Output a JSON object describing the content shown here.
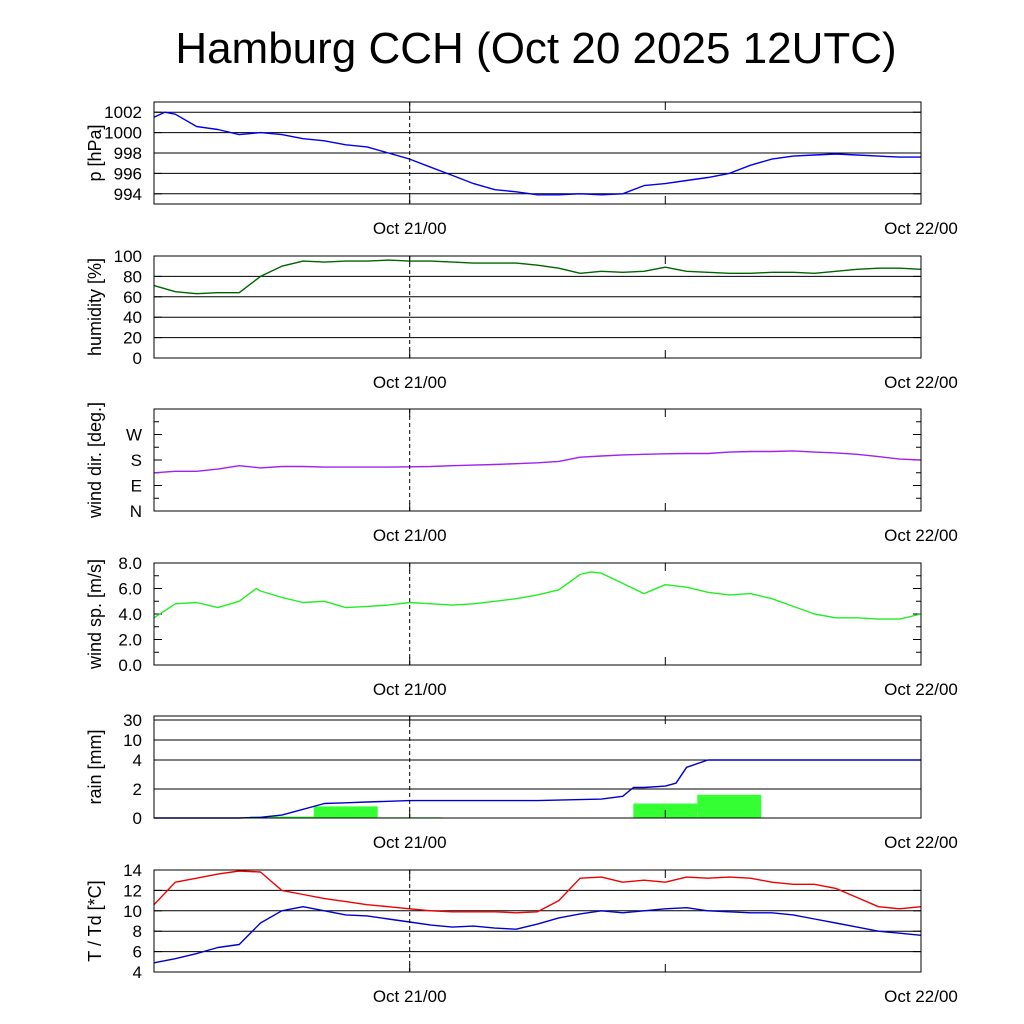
{
  "title": "Hamburg CCH (Oct 20 2025 12UTC)",
  "colors": {
    "pressure": "#0000ee",
    "humidity": "#006400",
    "wind_dir": "#a020f0",
    "wind_speed": "#22ee22",
    "rain_bars": "#33ff33",
    "rain_accum": "#0000cc",
    "temperature": "#ee0000",
    "dewpoint": "#0000cc"
  },
  "chart_data": [
    {
      "type": "line",
      "ylabel": "p [hPa]",
      "x_ticks": [
        "Oct 21/00",
        "Oct 22/00"
      ],
      "x_range_hours": [
        12,
        48
      ],
      "ylim": [
        993,
        1003
      ],
      "yticks": [
        "994",
        "996",
        "998",
        "1000",
        "1002"
      ],
      "ytick_values": [
        994,
        996,
        998,
        1000,
        1002
      ],
      "grid": true,
      "series": [
        {
          "key": "pressure",
          "x": [
            12,
            12.5,
            13,
            14,
            15,
            16,
            17,
            18,
            19,
            20,
            21,
            22,
            23,
            24,
            25,
            26,
            27,
            28,
            29,
            30,
            31,
            32,
            33,
            34,
            35,
            36,
            37,
            38,
            39,
            40,
            41,
            42,
            43,
            44,
            45,
            46,
            47,
            48
          ],
          "y": [
            1001.5,
            1002,
            1001.8,
            1000.6,
            1000.3,
            999.8,
            1000.0,
            999.8,
            999.4,
            999.2,
            998.8,
            998.6,
            998.0,
            997.4,
            996.6,
            995.8,
            995.0,
            994.4,
            994.2,
            993.9,
            993.9,
            994.0,
            993.9,
            994.0,
            994.8,
            995.0,
            995.3,
            995.6,
            996.0,
            996.8,
            997.4,
            997.7,
            997.8,
            997.9,
            997.8,
            997.7,
            997.6,
            997.6
          ]
        }
      ]
    },
    {
      "type": "line",
      "ylabel": "humidity [%]",
      "x_ticks": [
        "Oct 21/00",
        "Oct 22/00"
      ],
      "x_range_hours": [
        12,
        48
      ],
      "ylim": [
        0,
        100
      ],
      "yticks": [
        "0",
        "20",
        "40",
        "60",
        "80",
        "100"
      ],
      "ytick_values": [
        0,
        20,
        40,
        60,
        80,
        100
      ],
      "grid": true,
      "series": [
        {
          "key": "humidity",
          "x": [
            12,
            13,
            14,
            15,
            16,
            17,
            18,
            19,
            20,
            21,
            22,
            23,
            24,
            25,
            26,
            27,
            28,
            29,
            30,
            31,
            32,
            33,
            34,
            35,
            36,
            37,
            38,
            39,
            40,
            41,
            42,
            43,
            44,
            45,
            46,
            47,
            48
          ],
          "y": [
            71,
            65,
            63,
            64,
            64,
            80,
            90,
            95,
            94,
            95,
            95,
            96,
            95,
            95,
            94,
            93,
            93,
            93,
            91,
            88,
            83,
            85,
            84,
            85,
            89,
            85,
            84,
            83,
            83,
            84,
            84,
            83,
            85,
            87,
            88,
            88,
            87
          ]
        }
      ]
    },
    {
      "type": "line",
      "ylabel": "wind dir. [deg.]",
      "x_ticks": [
        "Oct 21/00",
        "Oct 22/00"
      ],
      "x_range_hours": [
        12,
        48
      ],
      "ylim": [
        0,
        360
      ],
      "yticks": [
        "N",
        "E",
        "S",
        "W"
      ],
      "ytick_values": [
        0,
        90,
        180,
        270
      ],
      "grid": false,
      "series": [
        {
          "key": "wind_dir",
          "x": [
            12,
            13,
            14,
            15,
            16,
            17,
            18,
            19,
            20,
            21,
            22,
            23,
            24,
            25,
            26,
            27,
            28,
            29,
            30,
            31,
            32,
            33,
            34,
            35,
            36,
            37,
            38,
            39,
            40,
            41,
            42,
            43,
            44,
            45,
            46,
            47,
            48
          ],
          "y": [
            135,
            140,
            140,
            148,
            160,
            152,
            157,
            157,
            155,
            155,
            155,
            155,
            156,
            157,
            160,
            162,
            164,
            167,
            170,
            175,
            190,
            194,
            198,
            200,
            202,
            203,
            203,
            208,
            210,
            210,
            212,
            208,
            205,
            200,
            192,
            183,
            180
          ]
        }
      ]
    },
    {
      "type": "line",
      "ylabel": "wind sp. [m/s]",
      "x_ticks": [
        "Oct 21/00",
        "Oct 22/00"
      ],
      "x_range_hours": [
        12,
        48
      ],
      "ylim": [
        0,
        8
      ],
      "yticks": [
        "0.0",
        "2.0",
        "4.0",
        "6.0",
        "8.0"
      ],
      "ytick_values": [
        0,
        2,
        4,
        6,
        8
      ],
      "grid": false,
      "series": [
        {
          "key": "wind_speed",
          "x": [
            12,
            13,
            14,
            15,
            16,
            16.8,
            17,
            18,
            19,
            20,
            21,
            22,
            23,
            24,
            25,
            26,
            27,
            28,
            29,
            30,
            31,
            32,
            32.5,
            33,
            34,
            35,
            36,
            37,
            38,
            39,
            40,
            41,
            42,
            43,
            44,
            45,
            46,
            47,
            48
          ],
          "y": [
            3.7,
            4.8,
            4.9,
            4.5,
            5.0,
            6.0,
            5.8,
            5.3,
            4.9,
            5.0,
            4.5,
            4.6,
            4.7,
            4.9,
            4.8,
            4.7,
            4.8,
            5.0,
            5.2,
            5.5,
            5.9,
            7.1,
            7.3,
            7.2,
            6.4,
            5.6,
            6.3,
            6.1,
            5.7,
            5.5,
            5.6,
            5.2,
            4.6,
            4.0,
            3.7,
            3.7,
            3.6,
            3.6,
            4.0
          ]
        }
      ]
    },
    {
      "type": "bar+line",
      "ylabel": "rain [mm]",
      "x_ticks": [
        "Oct 21/00",
        "Oct 22/00"
      ],
      "x_range_hours": [
        12,
        48
      ],
      "scale": "nonlinear",
      "yticks": [
        "0",
        "2",
        "4",
        "10",
        "30"
      ],
      "ytick_values": [
        0,
        2,
        4,
        10,
        30
      ],
      "grid": true,
      "bars": [
        {
          "start": 16.5,
          "end": 19.5,
          "value": 0.1
        },
        {
          "start": 19.5,
          "end": 22.5,
          "value": 0.8
        },
        {
          "start": 22.5,
          "end": 25.5,
          "value": 0.05
        },
        {
          "start": 34.5,
          "end": 37.5,
          "value": 1.0
        },
        {
          "start": 37.5,
          "end": 40.5,
          "value": 1.6
        }
      ],
      "series": [
        {
          "key": "rain_accum",
          "x": [
            12,
            16,
            17,
            18,
            19,
            20,
            21,
            22,
            24,
            26,
            30,
            33,
            34,
            34.5,
            35,
            36,
            36.5,
            37,
            38,
            40,
            44,
            48
          ],
          "y": [
            0,
            0,
            0.05,
            0.2,
            0.6,
            1.0,
            1.05,
            1.1,
            1.2,
            1.2,
            1.2,
            1.3,
            1.5,
            2.1,
            2.1,
            2.2,
            2.4,
            3.5,
            4.0,
            4.0,
            4.0,
            4.0
          ]
        }
      ]
    },
    {
      "type": "line",
      "ylabel": "T / Td [*C]",
      "x_ticks": [
        "Oct 21/00",
        "Oct 22/00"
      ],
      "x_range_hours": [
        12,
        48
      ],
      "ylim": [
        4,
        14
      ],
      "yticks": [
        "4",
        "6",
        "8",
        "10",
        "12",
        "14"
      ],
      "ytick_values": [
        4,
        6,
        8,
        10,
        12,
        14
      ],
      "grid": true,
      "series": [
        {
          "key": "temperature",
          "x": [
            12,
            13,
            14,
            15,
            16,
            17,
            18,
            19,
            20,
            21,
            22,
            23,
            24,
            25,
            26,
            27,
            28,
            29,
            30,
            31,
            32,
            33,
            34,
            35,
            36,
            37,
            38,
            39,
            40,
            41,
            42,
            43,
            44,
            45,
            46,
            47,
            48
          ],
          "y": [
            10.6,
            12.8,
            13.2,
            13.6,
            13.9,
            13.8,
            12.0,
            11.6,
            11.2,
            10.9,
            10.6,
            10.4,
            10.2,
            10.0,
            9.9,
            9.9,
            9.9,
            9.8,
            9.9,
            11.0,
            13.2,
            13.3,
            12.8,
            13.0,
            12.8,
            13.3,
            13.2,
            13.3,
            13.2,
            12.8,
            12.6,
            12.6,
            12.2,
            11.3,
            10.4,
            10.2,
            10.4
          ]
        },
        {
          "key": "dewpoint",
          "x": [
            12,
            13,
            14,
            15,
            16,
            17,
            18,
            19,
            20,
            21,
            22,
            23,
            24,
            25,
            26,
            27,
            28,
            29,
            30,
            31,
            32,
            33,
            34,
            35,
            36,
            37,
            38,
            39,
            40,
            41,
            42,
            43,
            44,
            45,
            46,
            47,
            48
          ],
          "y": [
            4.9,
            5.3,
            5.8,
            6.4,
            6.7,
            8.8,
            10.0,
            10.4,
            10.0,
            9.6,
            9.5,
            9.2,
            8.9,
            8.6,
            8.4,
            8.5,
            8.3,
            8.2,
            8.7,
            9.3,
            9.7,
            10.0,
            9.8,
            10.0,
            10.2,
            10.3,
            10.0,
            9.9,
            9.8,
            9.8,
            9.6,
            9.2,
            8.8,
            8.4,
            8.0,
            7.8,
            7.6
          ]
        }
      ]
    }
  ]
}
